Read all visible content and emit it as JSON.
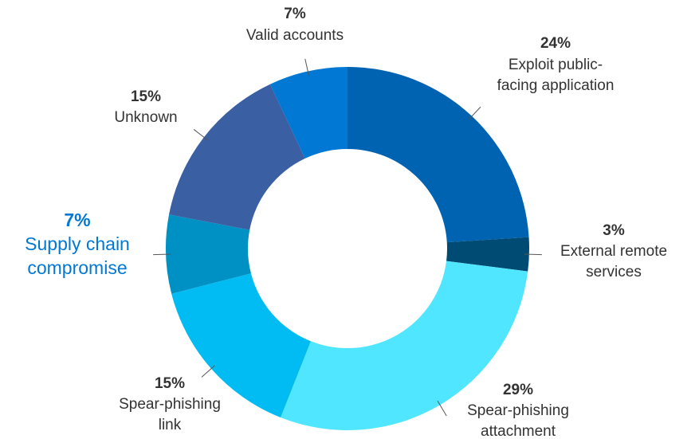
{
  "chart_data": {
    "type": "donut",
    "categories": [
      "Exploit public-\nfacing application",
      "External remote\nservices",
      "Spear-phishing\nattachment",
      "Spear-phishing\nlink",
      "Supply chain\ncompromise",
      "Unknown",
      "Valid accounts"
    ],
    "values": [
      24,
      3,
      29,
      15,
      7,
      15,
      7
    ],
    "value_labels": [
      "24%",
      "3%",
      "29%",
      "15%",
      "7%",
      "15%",
      "7%"
    ],
    "colors": [
      "#0063b1",
      "#004b74",
      "#50e6ff",
      "#00bcf2",
      "#0091c4",
      "#3a5fa2",
      "#0078d4"
    ],
    "highlight": "Supply chain\ncompromise",
    "highlight_color": "#0078d4"
  }
}
